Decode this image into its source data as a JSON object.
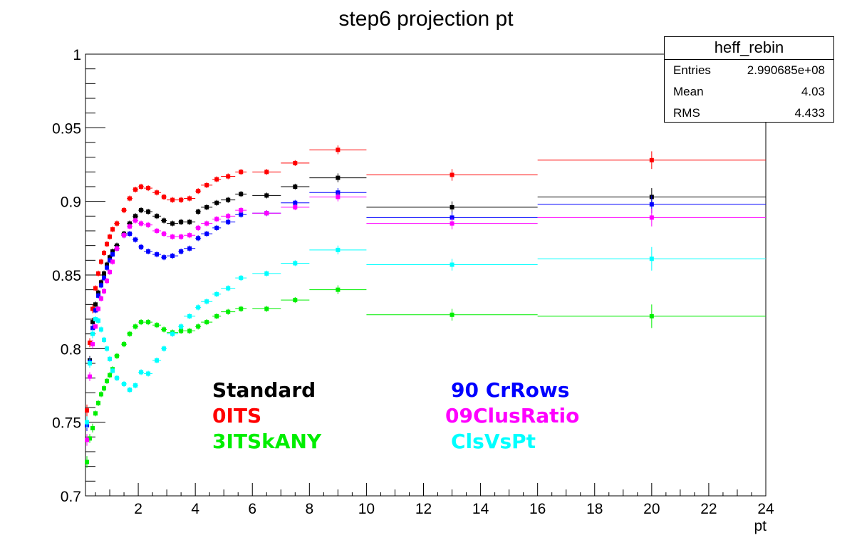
{
  "chart_data": {
    "type": "scatter",
    "title": "step6 projection pt",
    "xlabel": "pt",
    "ylabel": "",
    "xlim": [
      0.15,
      24
    ],
    "ylim": [
      0.7,
      1.0
    ],
    "xticks": [
      2,
      4,
      6,
      8,
      10,
      12,
      14,
      16,
      18,
      20,
      22,
      24
    ],
    "yticks": [
      0.7,
      0.75,
      0.8,
      0.85,
      0.9,
      0.95,
      1
    ],
    "ytick_labels": [
      "0.7",
      "0.75",
      "0.8",
      "0.85",
      "0.9",
      "0.95",
      "1"
    ],
    "x": [
      0.2,
      0.3,
      0.4,
      0.5,
      0.6,
      0.7,
      0.8,
      0.9,
      1.0,
      1.1,
      1.25,
      1.5,
      1.7,
      1.9,
      2.1,
      2.35,
      2.65,
      2.9,
      3.2,
      3.5,
      3.8,
      4.1,
      4.4,
      4.75,
      5.15,
      5.6,
      6.5,
      7.5,
      9,
      13,
      20
    ],
    "x_err": [
      0.05,
      0.05,
      0.05,
      0.05,
      0.05,
      0.05,
      0.05,
      0.05,
      0.05,
      0.05,
      0.1,
      0.1,
      0.1,
      0.1,
      0.1,
      0.15,
      0.15,
      0.1,
      0.2,
      0.1,
      0.2,
      0.1,
      0.2,
      0.15,
      0.25,
      0.2,
      0.5,
      0.5,
      1,
      3,
      4
    ],
    "series": [
      {
        "name": "Standard",
        "color": "#000000",
        "values": [
          0.749,
          0.792,
          0.818,
          0.83,
          0.838,
          0.845,
          0.851,
          0.857,
          0.862,
          0.866,
          0.87,
          0.878,
          0.885,
          0.89,
          0.894,
          0.893,
          0.89,
          0.887,
          0.885,
          0.886,
          0.886,
          0.893,
          0.896,
          0.899,
          0.901,
          0.905,
          0.904,
          0.91,
          0.916,
          0.896,
          0.903
        ],
        "err": [
          0.004,
          0.003,
          0.003,
          0.002,
          0.002,
          0.002,
          0.002,
          0.002,
          0.002,
          0.002,
          0.002,
          0.002,
          0.002,
          0.002,
          0.002,
          0.002,
          0.002,
          0.002,
          0.002,
          0.002,
          0.002,
          0.002,
          0.002,
          0.002,
          0.002,
          0.002,
          0.002,
          0.002,
          0.003,
          0.004,
          0.006
        ]
      },
      {
        "name": "0ITS",
        "color": "#ff0000",
        "values": [
          0.758,
          0.804,
          0.827,
          0.841,
          0.851,
          0.859,
          0.865,
          0.871,
          0.876,
          0.881,
          0.885,
          0.894,
          0.902,
          0.908,
          0.91,
          0.909,
          0.906,
          0.903,
          0.901,
          0.901,
          0.902,
          0.907,
          0.911,
          0.915,
          0.917,
          0.92,
          0.92,
          0.926,
          0.935,
          0.918,
          0.928
        ],
        "err": [
          0.004,
          0.003,
          0.003,
          0.002,
          0.002,
          0.002,
          0.002,
          0.002,
          0.002,
          0.002,
          0.002,
          0.002,
          0.002,
          0.002,
          0.002,
          0.002,
          0.002,
          0.002,
          0.002,
          0.002,
          0.002,
          0.002,
          0.002,
          0.002,
          0.002,
          0.002,
          0.002,
          0.002,
          0.003,
          0.004,
          0.006
        ]
      },
      {
        "name": "3ITSkANY",
        "color": "#00ee00",
        "values": [
          0.723,
          0.739,
          0.746,
          0.756,
          0.763,
          0.769,
          0.773,
          0.778,
          0.782,
          0.786,
          0.795,
          0.803,
          0.81,
          0.815,
          0.818,
          0.818,
          0.816,
          0.813,
          0.811,
          0.812,
          0.812,
          0.815,
          0.818,
          0.822,
          0.825,
          0.827,
          0.827,
          0.833,
          0.84,
          0.823,
          0.822
        ],
        "err": [
          0.004,
          0.003,
          0.003,
          0.002,
          0.002,
          0.002,
          0.002,
          0.002,
          0.002,
          0.002,
          0.002,
          0.002,
          0.002,
          0.002,
          0.002,
          0.002,
          0.002,
          0.002,
          0.002,
          0.002,
          0.002,
          0.002,
          0.002,
          0.002,
          0.002,
          0.002,
          0.002,
          0.002,
          0.003,
          0.004,
          0.008
        ]
      },
      {
        "name": "90 CrRows",
        "color": "#0000ff",
        "values": [
          0.748,
          0.791,
          0.814,
          0.826,
          0.836,
          0.843,
          0.848,
          0.855,
          0.86,
          0.864,
          0.868,
          0.877,
          0.878,
          0.874,
          0.869,
          0.866,
          0.864,
          0.862,
          0.863,
          0.866,
          0.868,
          0.875,
          0.878,
          0.882,
          0.886,
          0.891,
          0.892,
          0.899,
          0.906,
          0.889,
          0.898
        ],
        "err": [
          0.004,
          0.003,
          0.003,
          0.002,
          0.002,
          0.002,
          0.002,
          0.002,
          0.002,
          0.002,
          0.002,
          0.002,
          0.002,
          0.002,
          0.002,
          0.002,
          0.002,
          0.002,
          0.002,
          0.002,
          0.002,
          0.002,
          0.002,
          0.002,
          0.002,
          0.002,
          0.002,
          0.002,
          0.003,
          0.004,
          0.006
        ]
      },
      {
        "name": "09ClusRatio",
        "color": "#ff00ff",
        "values": [
          0.738,
          0.781,
          0.803,
          0.815,
          0.827,
          0.834,
          0.839,
          0.846,
          0.852,
          0.859,
          0.868,
          0.877,
          0.883,
          0.887,
          0.885,
          0.884,
          0.88,
          0.878,
          0.876,
          0.876,
          0.877,
          0.882,
          0.885,
          0.888,
          0.89,
          0.894,
          0.892,
          0.896,
          0.903,
          0.885,
          0.889
        ],
        "err": [
          0.004,
          0.003,
          0.003,
          0.002,
          0.002,
          0.002,
          0.002,
          0.002,
          0.002,
          0.002,
          0.002,
          0.002,
          0.002,
          0.002,
          0.002,
          0.002,
          0.002,
          0.002,
          0.002,
          0.002,
          0.002,
          0.002,
          0.002,
          0.002,
          0.002,
          0.002,
          0.002,
          0.002,
          0.003,
          0.004,
          0.006
        ]
      },
      {
        "name": "ClsVsPt",
        "color": "#00ffff",
        "values": [
          0.75,
          0.79,
          0.81,
          0.82,
          0.819,
          0.813,
          0.806,
          0.8,
          0.793,
          0.785,
          0.78,
          0.776,
          0.772,
          0.775,
          0.784,
          0.783,
          0.792,
          0.8,
          0.81,
          0.815,
          0.822,
          0.828,
          0.832,
          0.837,
          0.841,
          0.848,
          0.851,
          0.858,
          0.867,
          0.857,
          0.861
        ],
        "err": [
          0.004,
          0.003,
          0.003,
          0.002,
          0.002,
          0.002,
          0.002,
          0.002,
          0.002,
          0.002,
          0.002,
          0.002,
          0.002,
          0.002,
          0.002,
          0.002,
          0.002,
          0.002,
          0.002,
          0.002,
          0.002,
          0.002,
          0.002,
          0.002,
          0.002,
          0.002,
          0.002,
          0.002,
          0.003,
          0.004,
          0.008
        ]
      }
    ],
    "legend": "bottom-center",
    "grid": false
  },
  "statbox": {
    "title": "heff_rebin",
    "rows": [
      {
        "label": "Entries",
        "value": "2.990685e+08"
      },
      {
        "label": "Mean",
        "value": "4.03"
      },
      {
        "label": "RMS",
        "value": "4.433"
      }
    ]
  },
  "legend_entries": [
    {
      "label": "Standard",
      "color": "#000000"
    },
    {
      "label": "0ITS",
      "color": "#ff0000"
    },
    {
      "label": "3ITSkANY",
      "color": "#00ee00"
    },
    {
      "label": "90 CrRows",
      "color": "#0000ff"
    },
    {
      "label": "09ClusRatio",
      "color": "#ff00ff"
    },
    {
      "label": "ClsVsPt",
      "color": "#00ffff"
    }
  ]
}
